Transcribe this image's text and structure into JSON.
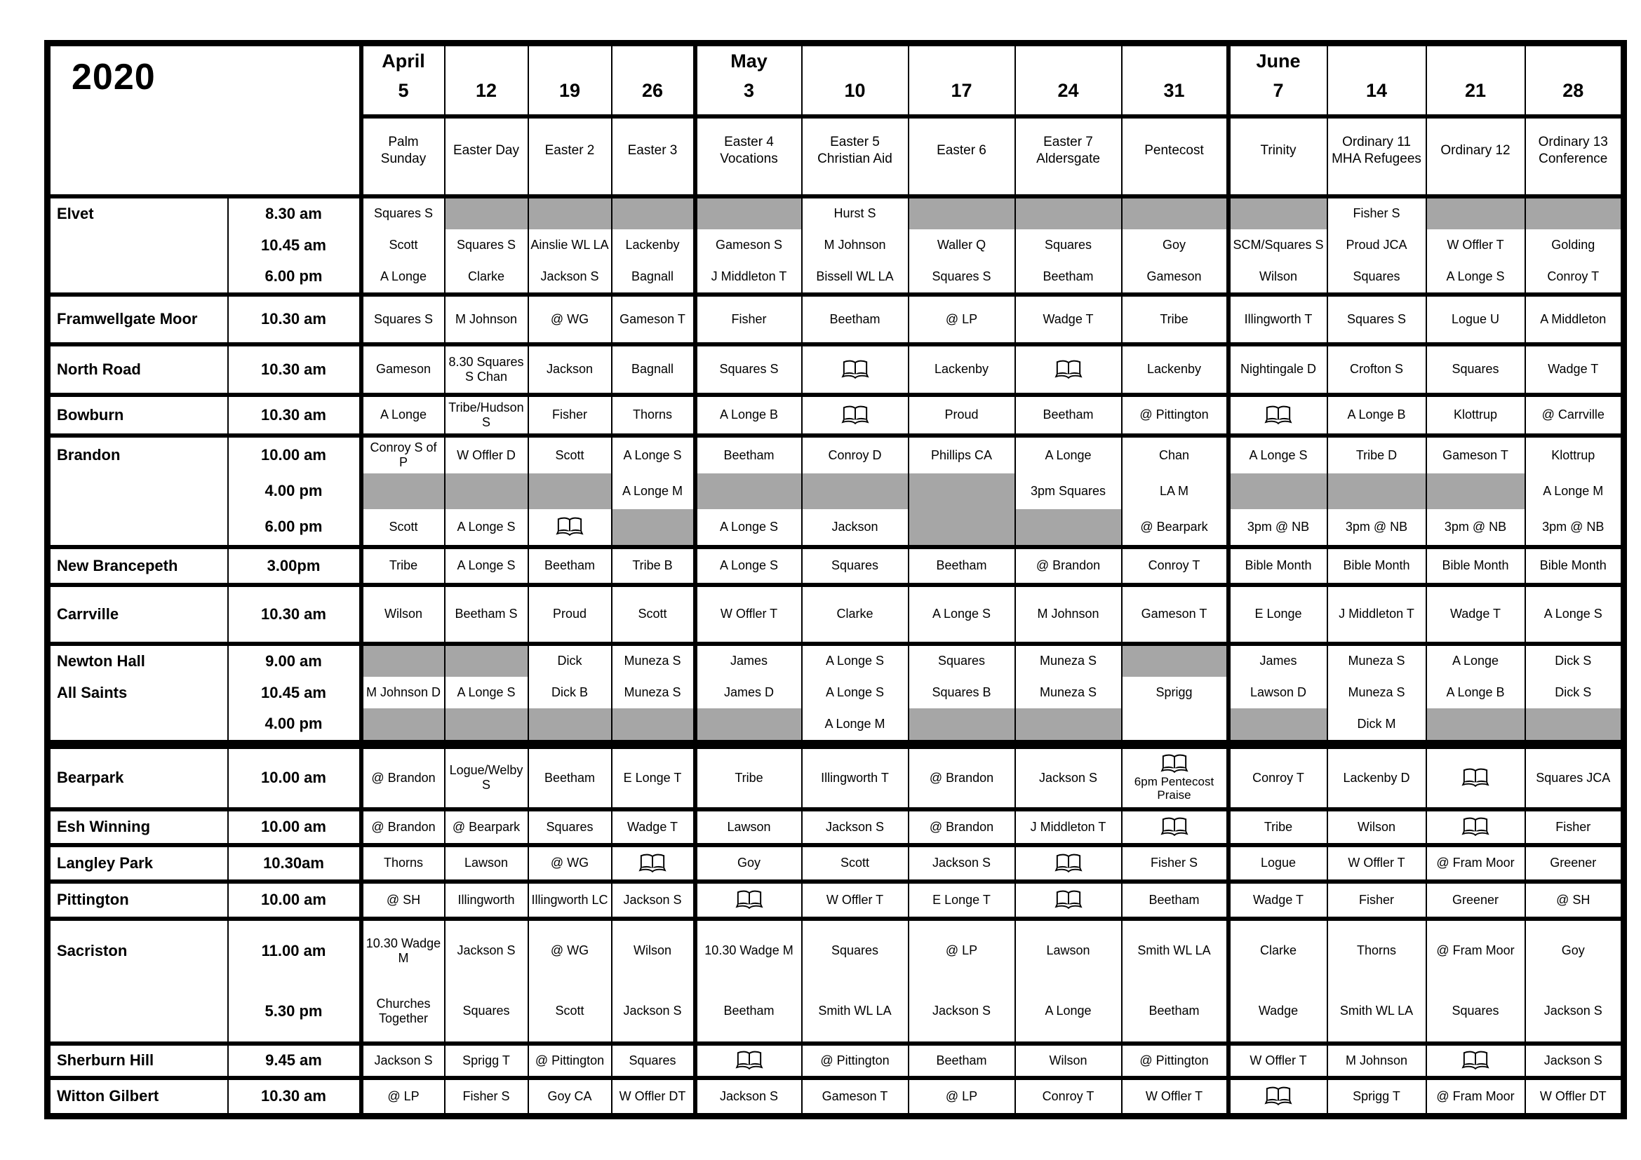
{
  "title": "2020",
  "colors": {
    "empty_slot_grey": "#a6a6a6"
  },
  "cell_encoding": {
    "g": "grey-no-service-cell",
    "bk": "open-book-icon",
    "t": "text"
  },
  "months": [
    {
      "label": "April",
      "days": [
        "5",
        "12",
        "19",
        "26"
      ],
      "festivals": [
        "Palm Sunday",
        "Easter Day",
        "Easter 2",
        "Easter 3"
      ]
    },
    {
      "label": "May",
      "days": [
        "3",
        "10",
        "17",
        "24",
        "31"
      ],
      "festivals": [
        "Easter 4 Vocations",
        "Easter 5 Christian Aid",
        "Easter 6",
        "Easter 7 Aldersgate",
        "Pentecost"
      ]
    },
    {
      "label": "June",
      "days": [
        "7",
        "14",
        "21",
        "28"
      ],
      "festivals": [
        "Trinity",
        "Ordinary 11 MHA Refugees",
        "Ordinary 12",
        "Ordinary 13 Conference"
      ]
    }
  ],
  "churches": [
    {
      "name": [
        "Elvet",
        "",
        ""
      ],
      "times": [
        "8.30 am",
        "10.45 am",
        "6.00 pm"
      ],
      "rows": [
        [
          "Squares S",
          {
            "g": true
          },
          {
            "g": true
          },
          {
            "g": true
          },
          {
            "g": true
          },
          "Hurst S",
          {
            "g": true
          },
          {
            "g": true
          },
          {
            "g": true
          },
          {
            "g": true
          },
          "Fisher S",
          {
            "g": true
          },
          {
            "g": true
          }
        ],
        [
          "Scott",
          "Squares S",
          "Ainslie WL LA",
          "Lackenby",
          "Gameson S",
          "M Johnson",
          "Waller Q",
          "Squares",
          "Goy",
          "SCM/Squares S",
          "Proud JCA",
          "W Offler T",
          "Golding"
        ],
        [
          "A Longe",
          "Clarke",
          "Jackson S",
          "Bagnall",
          "J Middleton T",
          "Bissell WL LA",
          "Squares S",
          "Beetham",
          "Gameson",
          "Wilson",
          "Squares",
          "A Longe S",
          "Conroy T"
        ]
      ]
    },
    {
      "name": "Framwellgate Moor",
      "times": [
        "10.30 am"
      ],
      "rows": [
        [
          "Squares S",
          "M Johnson",
          "@ WG",
          "Gameson T",
          "Fisher",
          "Beetham",
          "@ LP",
          "Wadge T",
          "Tribe",
          "Illingworth T",
          "Squares S",
          "Logue U",
          "A Middleton"
        ]
      ]
    },
    {
      "name": "North Road",
      "times": [
        "10.30 am"
      ],
      "rows": [
        [
          "Gameson",
          "8.30 Squares S Chan",
          "Jackson",
          "Bagnall",
          "Squares S",
          {
            "bk": true
          },
          "Lackenby",
          {
            "bk": true
          },
          "Lackenby",
          "Nightingale D",
          "Crofton S",
          "Squares",
          "Wadge T"
        ]
      ]
    },
    {
      "name": "Bowburn",
      "times": [
        "10.30 am"
      ],
      "rows": [
        [
          "A Longe",
          "Tribe/Hudson S",
          "Fisher",
          "Thorns",
          "A Longe B",
          {
            "bk": true
          },
          "Proud",
          "Beetham",
          "@ Pittington",
          {
            "bk": true
          },
          "A Longe B",
          "Klottrup",
          "@ Carrville"
        ]
      ]
    },
    {
      "name": [
        "Brandon",
        "",
        ""
      ],
      "times": [
        "10.00 am",
        "4.00 pm",
        "6.00 pm"
      ],
      "rows": [
        [
          "Conroy S of P",
          "W Offler D",
          "Scott",
          "A Longe S",
          "Beetham",
          "Conroy D",
          "Phillips CA",
          "A Longe",
          "Chan",
          "A Longe S",
          "Tribe D",
          "Gameson T",
          "Klottrup"
        ],
        [
          {
            "g": true
          },
          {
            "g": true
          },
          {
            "g": true
          },
          "A Longe M",
          {
            "g": true
          },
          {
            "g": true
          },
          {
            "g": true
          },
          "3pm Squares",
          "LA M",
          {
            "g": true
          },
          {
            "g": true
          },
          {
            "g": true
          },
          "A Longe M"
        ],
        [
          "Scott",
          "A Longe S",
          {
            "bk": true
          },
          {
            "g": true
          },
          "A Longe S",
          "Jackson",
          {
            "g": true
          },
          {
            "g": true
          },
          "@ Bearpark",
          "3pm @ NB",
          "3pm @ NB",
          "3pm @ NB",
          "3pm @ NB"
        ]
      ]
    },
    {
      "name": "New Brancepeth",
      "times": [
        "3.00pm"
      ],
      "rows": [
        [
          "Tribe",
          "A Longe S",
          "Beetham",
          "Tribe B",
          "A Longe S",
          "Squares",
          "Beetham",
          "@ Brandon",
          "Conroy T",
          "Bible Month",
          "Bible Month",
          "Bible Month",
          "Bible Month"
        ]
      ]
    },
    {
      "name": "Carrville",
      "times": [
        "10.30 am"
      ],
      "rows": [
        [
          "Wilson",
          "Beetham S",
          "Proud",
          "Scott",
          "W Offler T",
          "Clarke",
          "A Longe S",
          "M Johnson",
          "Gameson T",
          "E Longe",
          "J Middleton T",
          "Wadge T",
          "A Longe S"
        ]
      ]
    },
    {
      "name": [
        "Newton Hall",
        "All Saints",
        ""
      ],
      "times": [
        "9.00 am",
        "10.45 am",
        "4.00 pm"
      ],
      "rows": [
        [
          {
            "g": true
          },
          {
            "g": true
          },
          "Dick",
          "Muneza S",
          "James",
          "A Longe S",
          "Squares",
          "Muneza S",
          {
            "g": true
          },
          "James",
          "Muneza S",
          "A Longe",
          "Dick S"
        ],
        [
          "M Johnson D",
          "A Longe S",
          "Dick B",
          "Muneza S",
          "James D",
          "A Longe S",
          "Squares B",
          "Muneza S",
          "Sprigg",
          "Lawson D",
          "Muneza S",
          "A Longe B",
          "Dick S"
        ],
        [
          {
            "g": true
          },
          {
            "g": true
          },
          {
            "g": true
          },
          {
            "g": true
          },
          {
            "g": true
          },
          "A Longe M",
          {
            "g": true
          },
          {
            "g": true
          },
          "",
          {
            "g": true
          },
          "Dick M",
          {
            "g": true
          },
          {
            "g": true
          }
        ]
      ]
    },
    {
      "name": "Bearpark",
      "times": [
        "10.00 am"
      ],
      "rows": [
        [
          "@ Brandon",
          "Logue/Welby S",
          "Beetham",
          "E Longe T",
          "Tribe",
          "Illingworth T",
          "@ Brandon",
          "Jackson S",
          {
            "bk": true,
            "t": "6pm Pentecost Praise"
          },
          "Conroy T",
          "Lackenby D",
          {
            "bk": true
          },
          "Squares JCA"
        ]
      ]
    },
    {
      "name": "Esh Winning",
      "times": [
        "10.00 am"
      ],
      "rows": [
        [
          "@ Brandon",
          "@ Bearpark",
          "Squares",
          "Wadge T",
          "Lawson",
          "Jackson S",
          "@ Brandon",
          "J Middleton T",
          {
            "bk": true
          },
          "Tribe",
          "Wilson",
          {
            "bk": true
          },
          "Fisher"
        ]
      ]
    },
    {
      "name": "Langley Park",
      "times": [
        "10.30am"
      ],
      "rows": [
        [
          "Thorns",
          "Lawson",
          "@ WG",
          {
            "bk": true
          },
          "Goy",
          "Scott",
          "Jackson S",
          {
            "bk": true
          },
          "Fisher S",
          "Logue",
          "W Offler T",
          "@ Fram Moor",
          "Greener"
        ]
      ]
    },
    {
      "name": "Pittington",
      "times": [
        "10.00 am"
      ],
      "rows": [
        [
          "@ SH",
          "Illingworth",
          "Illingworth LC",
          "Jackson S",
          {
            "bk": true
          },
          "W Offler T",
          "E Longe T",
          {
            "bk": true
          },
          "Beetham",
          "Wadge T",
          "Fisher",
          "Greener",
          "@ SH"
        ]
      ]
    },
    {
      "name": [
        "Sacriston",
        ""
      ],
      "times": [
        "11.00 am",
        "5.30 pm"
      ],
      "rows": [
        [
          "10.30 Wadge M",
          "Jackson S",
          "@ WG",
          "Wilson",
          "10.30 Wadge M",
          "Squares",
          "@ LP",
          "Lawson",
          "Smith WL LA",
          "Clarke",
          "Thorns",
          "@ Fram Moor",
          "Goy"
        ],
        [
          "Churches Together",
          "Squares",
          "Scott",
          "Jackson S",
          "Beetham",
          "Smith WL LA",
          "Jackson S",
          "A Longe",
          "Beetham",
          "Wadge",
          "Smith WL LA",
          "Squares",
          "Jackson S"
        ]
      ]
    },
    {
      "name": "Sherburn Hill",
      "times": [
        "9.45 am"
      ],
      "rows": [
        [
          "Jackson S",
          "Sprigg T",
          "@ Pittington",
          "Squares",
          {
            "bk": true
          },
          "@ Pittington",
          "Beetham",
          "Wilson",
          "@ Pittington",
          "W Offler T",
          "M Johnson",
          {
            "bk": true
          },
          "Jackson S"
        ]
      ]
    },
    {
      "name": "Witton Gilbert",
      "times": [
        "10.30 am"
      ],
      "rows": [
        [
          "@ LP",
          "Fisher S",
          "Goy CA",
          "W Offler DT",
          "Jackson S",
          "Gameson T",
          "@ LP",
          "Conroy T",
          "W Offler T",
          {
            "bk": true
          },
          "Sprigg T",
          "@ Fram Moor",
          "W Offler DT"
        ]
      ]
    }
  ]
}
